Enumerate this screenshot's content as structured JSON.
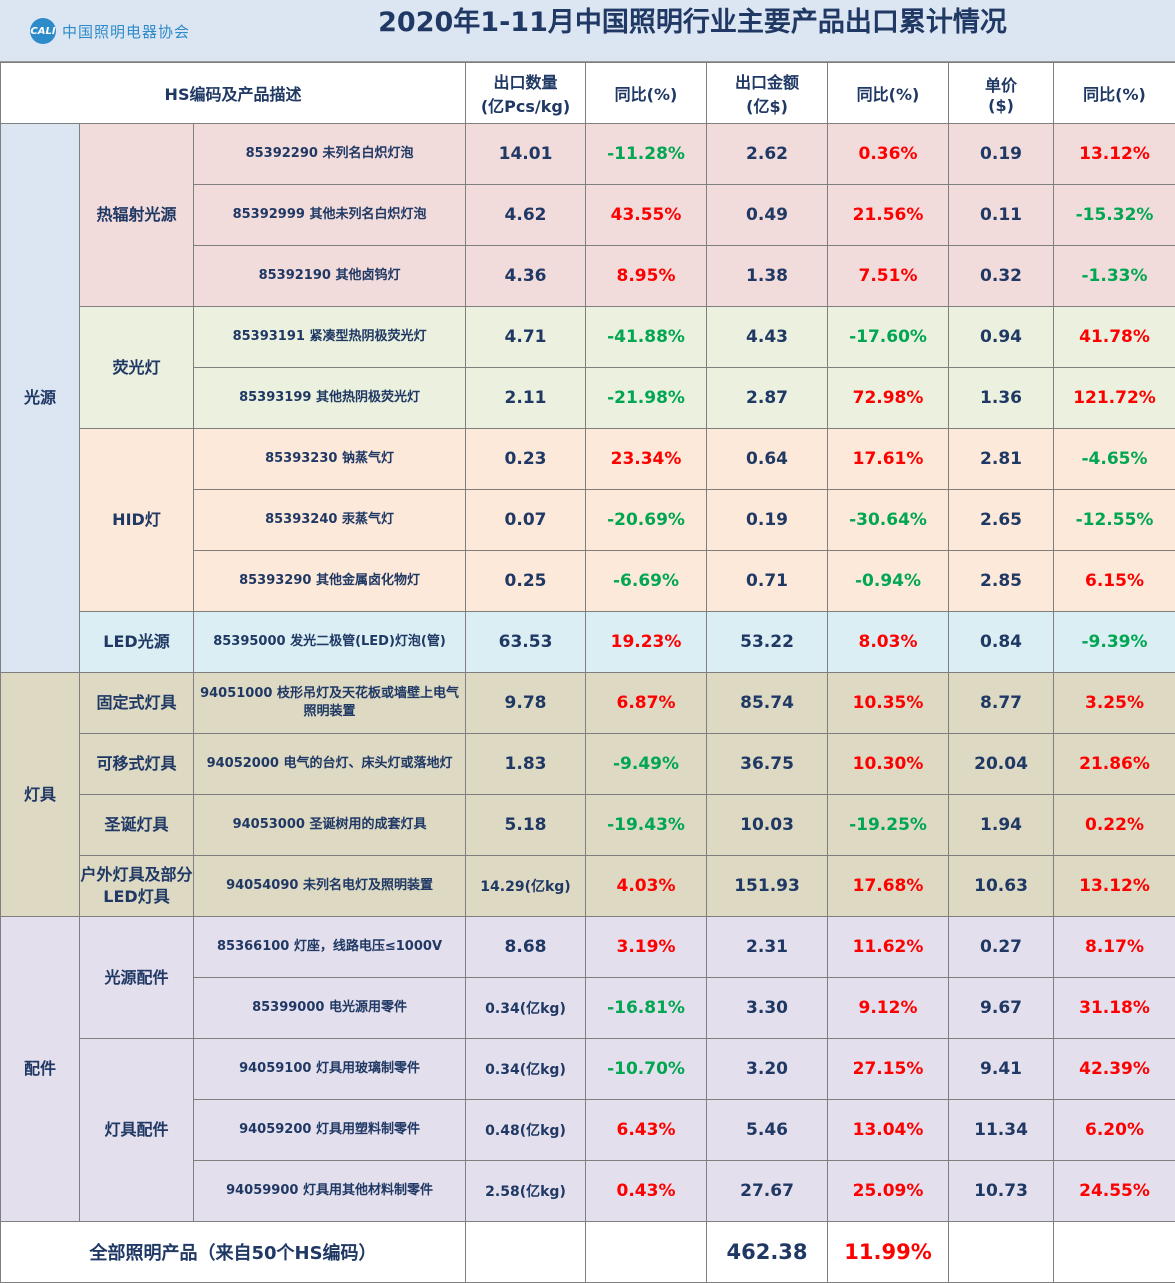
{
  "logo": {
    "mark": "CALI",
    "text": "中国照明电器协会"
  },
  "title": "2020年1-11月中国照明行业主要产品出口累计情况",
  "headers": {
    "product": "HS编码及产品描述",
    "qty": "出口数量\n(亿Pcs/kg)",
    "qty_yoy": "同比(%)",
    "amount": "出口金额\n(亿$)",
    "amount_yoy": "同比(%)",
    "price": "单价\n($)",
    "price_yoy": "同比(%)"
  },
  "groups": [
    {
      "name": "光源",
      "color": "#dce6f2"
    },
    {
      "name": "灯具",
      "color": "#ddd9c3"
    },
    {
      "name": "配件",
      "color": "#e4dfec"
    }
  ],
  "subgroups": [
    {
      "name": "热辐射光源",
      "color": "#f2dcdb"
    },
    {
      "name": "荧光灯",
      "color": "#ebf1de"
    },
    {
      "name": "HID灯",
      "color": "#fde9d9"
    },
    {
      "name": "LED光源",
      "color": "#daeef3"
    },
    {
      "name": "固定式灯具",
      "color": "#ddd9c3"
    },
    {
      "name": "可移式灯具",
      "color": "#ddd9c3"
    },
    {
      "name": "圣诞灯具",
      "color": "#ddd9c3"
    },
    {
      "name": "户外灯具及部分LED灯具",
      "color": "#ddd9c3"
    },
    {
      "name": "光源配件",
      "color": "#e4dfec"
    },
    {
      "name": "灯具配件",
      "color": "#e4dfec"
    }
  ],
  "rows": [
    {
      "desc": "85392290 未列名白炽灯泡",
      "qty": "14.01",
      "qty_yoy": "-11.28%",
      "amount": "2.62",
      "amount_yoy": "0.36%",
      "price": "0.19",
      "price_yoy": "13.12%"
    },
    {
      "desc": "85392999 其他未列名白炽灯泡",
      "qty": "4.62",
      "qty_yoy": "43.55%",
      "amount": "0.49",
      "amount_yoy": "21.56%",
      "price": "0.11",
      "price_yoy": "-15.32%"
    },
    {
      "desc": "85392190 其他卤钨灯",
      "qty": "4.36",
      "qty_yoy": "8.95%",
      "amount": "1.38",
      "amount_yoy": "7.51%",
      "price": "0.32",
      "price_yoy": "-1.33%"
    },
    {
      "desc": "85393191 紧凑型热阴极荧光灯",
      "qty": "4.71",
      "qty_yoy": "-41.88%",
      "amount": "4.43",
      "amount_yoy": "-17.60%",
      "price": "0.94",
      "price_yoy": "41.78%"
    },
    {
      "desc": "85393199 其他热阴极荧光灯",
      "qty": "2.11",
      "qty_yoy": "-21.98%",
      "amount": "2.87",
      "amount_yoy": "72.98%",
      "price": "1.36",
      "price_yoy": "121.72%"
    },
    {
      "desc": "85393230 钠蒸气灯",
      "qty": "0.23",
      "qty_yoy": "23.34%",
      "amount": "0.64",
      "amount_yoy": "17.61%",
      "price": "2.81",
      "price_yoy": "-4.65%"
    },
    {
      "desc": "85393240 汞蒸气灯",
      "qty": "0.07",
      "qty_yoy": "-20.69%",
      "amount": "0.19",
      "amount_yoy": "-30.64%",
      "price": "2.65",
      "price_yoy": "-12.55%"
    },
    {
      "desc": "85393290 其他金属卤化物灯",
      "qty": "0.25",
      "qty_yoy": "-6.69%",
      "amount": "0.71",
      "amount_yoy": "-0.94%",
      "price": "2.85",
      "price_yoy": "6.15%"
    },
    {
      "desc": "85395000 发光二极管(LED)灯泡(管)",
      "qty": "63.53",
      "qty_yoy": "19.23%",
      "amount": "53.22",
      "amount_yoy": "8.03%",
      "price": "0.84",
      "price_yoy": "-9.39%"
    },
    {
      "desc": "94051000 枝形吊灯及天花板或墙壁上电气照明装置",
      "qty": "9.78",
      "qty_yoy": "6.87%",
      "amount": "85.74",
      "amount_yoy": "10.35%",
      "price": "8.77",
      "price_yoy": "3.25%"
    },
    {
      "desc": "94052000 电气的台灯、床头灯或落地灯",
      "qty": "1.83",
      "qty_yoy": "-9.49%",
      "amount": "36.75",
      "amount_yoy": "10.30%",
      "price": "20.04",
      "price_yoy": "21.86%"
    },
    {
      "desc": "94053000 圣诞树用的成套灯具",
      "qty": "5.18",
      "qty_yoy": "-19.43%",
      "amount": "10.03",
      "amount_yoy": "-19.25%",
      "price": "1.94",
      "price_yoy": "0.22%"
    },
    {
      "desc": "94054090 未列名电灯及照明装置",
      "qty": "14.29(亿kg)",
      "qty_yoy": "4.03%",
      "amount": "151.93",
      "amount_yoy": "17.68%",
      "price": "10.63",
      "price_yoy": "13.12%"
    },
    {
      "desc": "85366100 灯座，线路电压≤1000V",
      "qty": "8.68",
      "qty_yoy": "3.19%",
      "amount": "2.31",
      "amount_yoy": "11.62%",
      "price": "0.27",
      "price_yoy": "8.17%"
    },
    {
      "desc": "85399000 电光源用零件",
      "qty": "0.34(亿kg)",
      "qty_yoy": "-16.81%",
      "amount": "3.30",
      "amount_yoy": "9.12%",
      "price": "9.67",
      "price_yoy": "31.18%"
    },
    {
      "desc": "94059100 灯具用玻璃制零件",
      "qty": "0.34(亿kg)",
      "qty_yoy": "-10.70%",
      "amount": "3.20",
      "amount_yoy": "27.15%",
      "price": "9.41",
      "price_yoy": "42.39%"
    },
    {
      "desc": "94059200 灯具用塑料制零件",
      "qty": "0.48(亿kg)",
      "qty_yoy": "6.43%",
      "amount": "5.46",
      "amount_yoy": "13.04%",
      "price": "11.34",
      "price_yoy": "6.20%"
    },
    {
      "desc": "94059900 灯具用其他材料制零件",
      "qty": "2.58(亿kg)",
      "qty_yoy": "0.43%",
      "amount": "27.67",
      "amount_yoy": "25.09%",
      "price": "10.73",
      "price_yoy": "24.55%"
    }
  ],
  "total": {
    "label": "全部照明产品（来自50个HS编码）",
    "amount": "462.38",
    "amount_yoy": "11.99%"
  },
  "colors": {
    "positive": "#ff0000",
    "negative": "#00a651",
    "text": "#1f3864"
  }
}
